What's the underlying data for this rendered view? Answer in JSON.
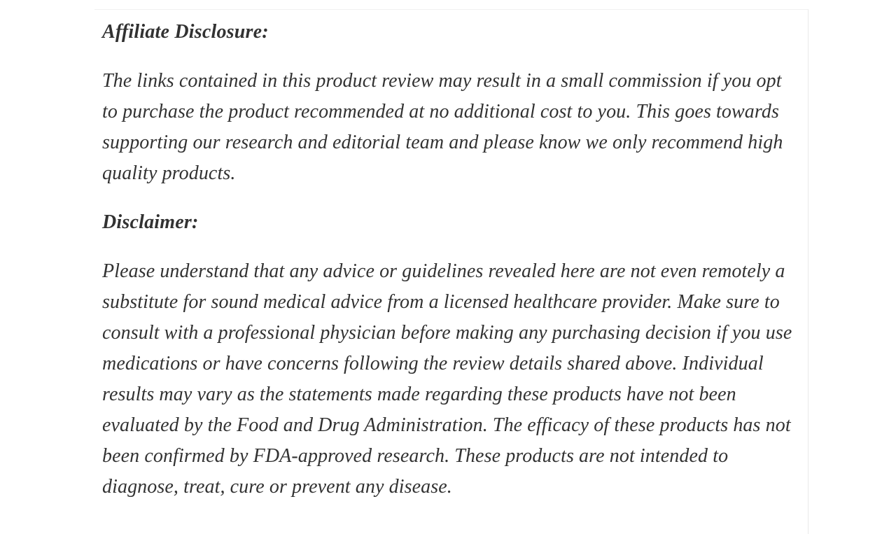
{
  "page": {
    "background_color": "#ffffff",
    "text_color": "#323232",
    "card_top_border_color": "#f1f1f1",
    "card_right_border_color": "#e9e9e9"
  },
  "content": {
    "affiliate_heading": "Affiliate Disclosure:",
    "affiliate_paragraph": "The links contained in this product review may result in a small commission if you opt to purchase the product recommended at no additional cost to you. This goes towards supporting our research and editorial team and please know we only recommend high quality products.",
    "disclaimer_heading": "Disclaimer:",
    "disclaimer_paragraph": "Please understand that any advice or guidelines revealed here are not even remotely a substitute for sound medical advice from a licensed healthcare provider. Make sure to consult with a professional physician before making any purchasing decision if you use medications or have concerns following the review details shared above. Individual results may vary as the statements made regarding these products have not been evaluated by the Food and Drug Administration. The efficacy of these products has not been confirmed by FDA-approved research. These products are not intended to diagnose, treat, cure or prevent any disease."
  }
}
